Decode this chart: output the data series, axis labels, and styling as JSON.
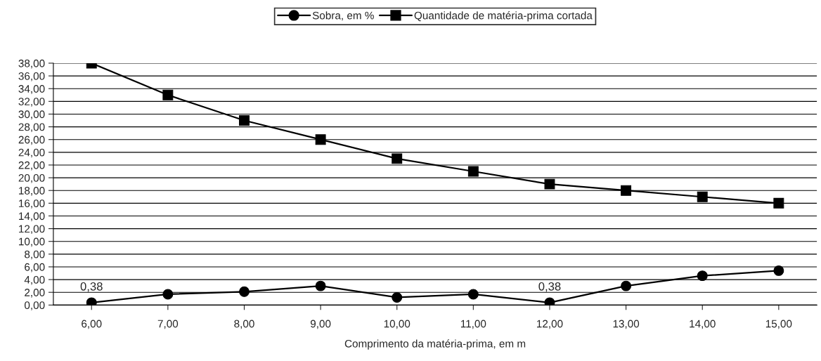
{
  "chart_data": {
    "type": "line",
    "xlabel": "Comprimento da matéria-prima, em m",
    "categories": [
      "6,00",
      "7,00",
      "8,00",
      "9,00",
      "10,00",
      "11,00",
      "12,00",
      "13,00",
      "14,00",
      "15,00"
    ],
    "series": [
      {
        "name": "Sobra, em %",
        "color": "#000000",
        "marker": "circle",
        "values": [
          0.38,
          1.7,
          2.1,
          3.0,
          1.2,
          1.7,
          0.38,
          3.0,
          4.6,
          5.4
        ],
        "value_labels": [
          "0,38",
          null,
          null,
          null,
          null,
          null,
          "0,38",
          null,
          null,
          null
        ]
      },
      {
        "name": "Quantidade de matéria-prima cortada",
        "color": "#000000",
        "marker": "square",
        "values": [
          38,
          33,
          29,
          26,
          23,
          21,
          19,
          18,
          17,
          16
        ]
      }
    ],
    "ylim": [
      0,
      38
    ],
    "yticks": [
      {
        "value": 0,
        "label": "0,00"
      },
      {
        "value": 2,
        "label": "2,00"
      },
      {
        "value": 4,
        "label": "4,00"
      },
      {
        "value": 6,
        "label": "6,00"
      },
      {
        "value": 8,
        "label": "8,00"
      },
      {
        "value": 10,
        "label": "10,00"
      },
      {
        "value": 12,
        "label": "12,00"
      },
      {
        "value": 14,
        "label": "14,00"
      },
      {
        "value": 16,
        "label": "16,00"
      },
      {
        "value": 18,
        "label": "18,00"
      },
      {
        "value": 20,
        "label": "20,00"
      },
      {
        "value": 22,
        "label": "22,00"
      },
      {
        "value": 24,
        "label": "24,00"
      },
      {
        "value": 26,
        "label": "26,00"
      },
      {
        "value": 28,
        "label": "28,00"
      },
      {
        "value": 30,
        "label": "30,00"
      },
      {
        "value": 32,
        "label": "32,00"
      },
      {
        "value": 34,
        "label": "34,00"
      },
      {
        "value": 36,
        "label": "36,00"
      },
      {
        "value": 38,
        "label": "38,00"
      }
    ],
    "grid": "y",
    "legend": "top"
  }
}
